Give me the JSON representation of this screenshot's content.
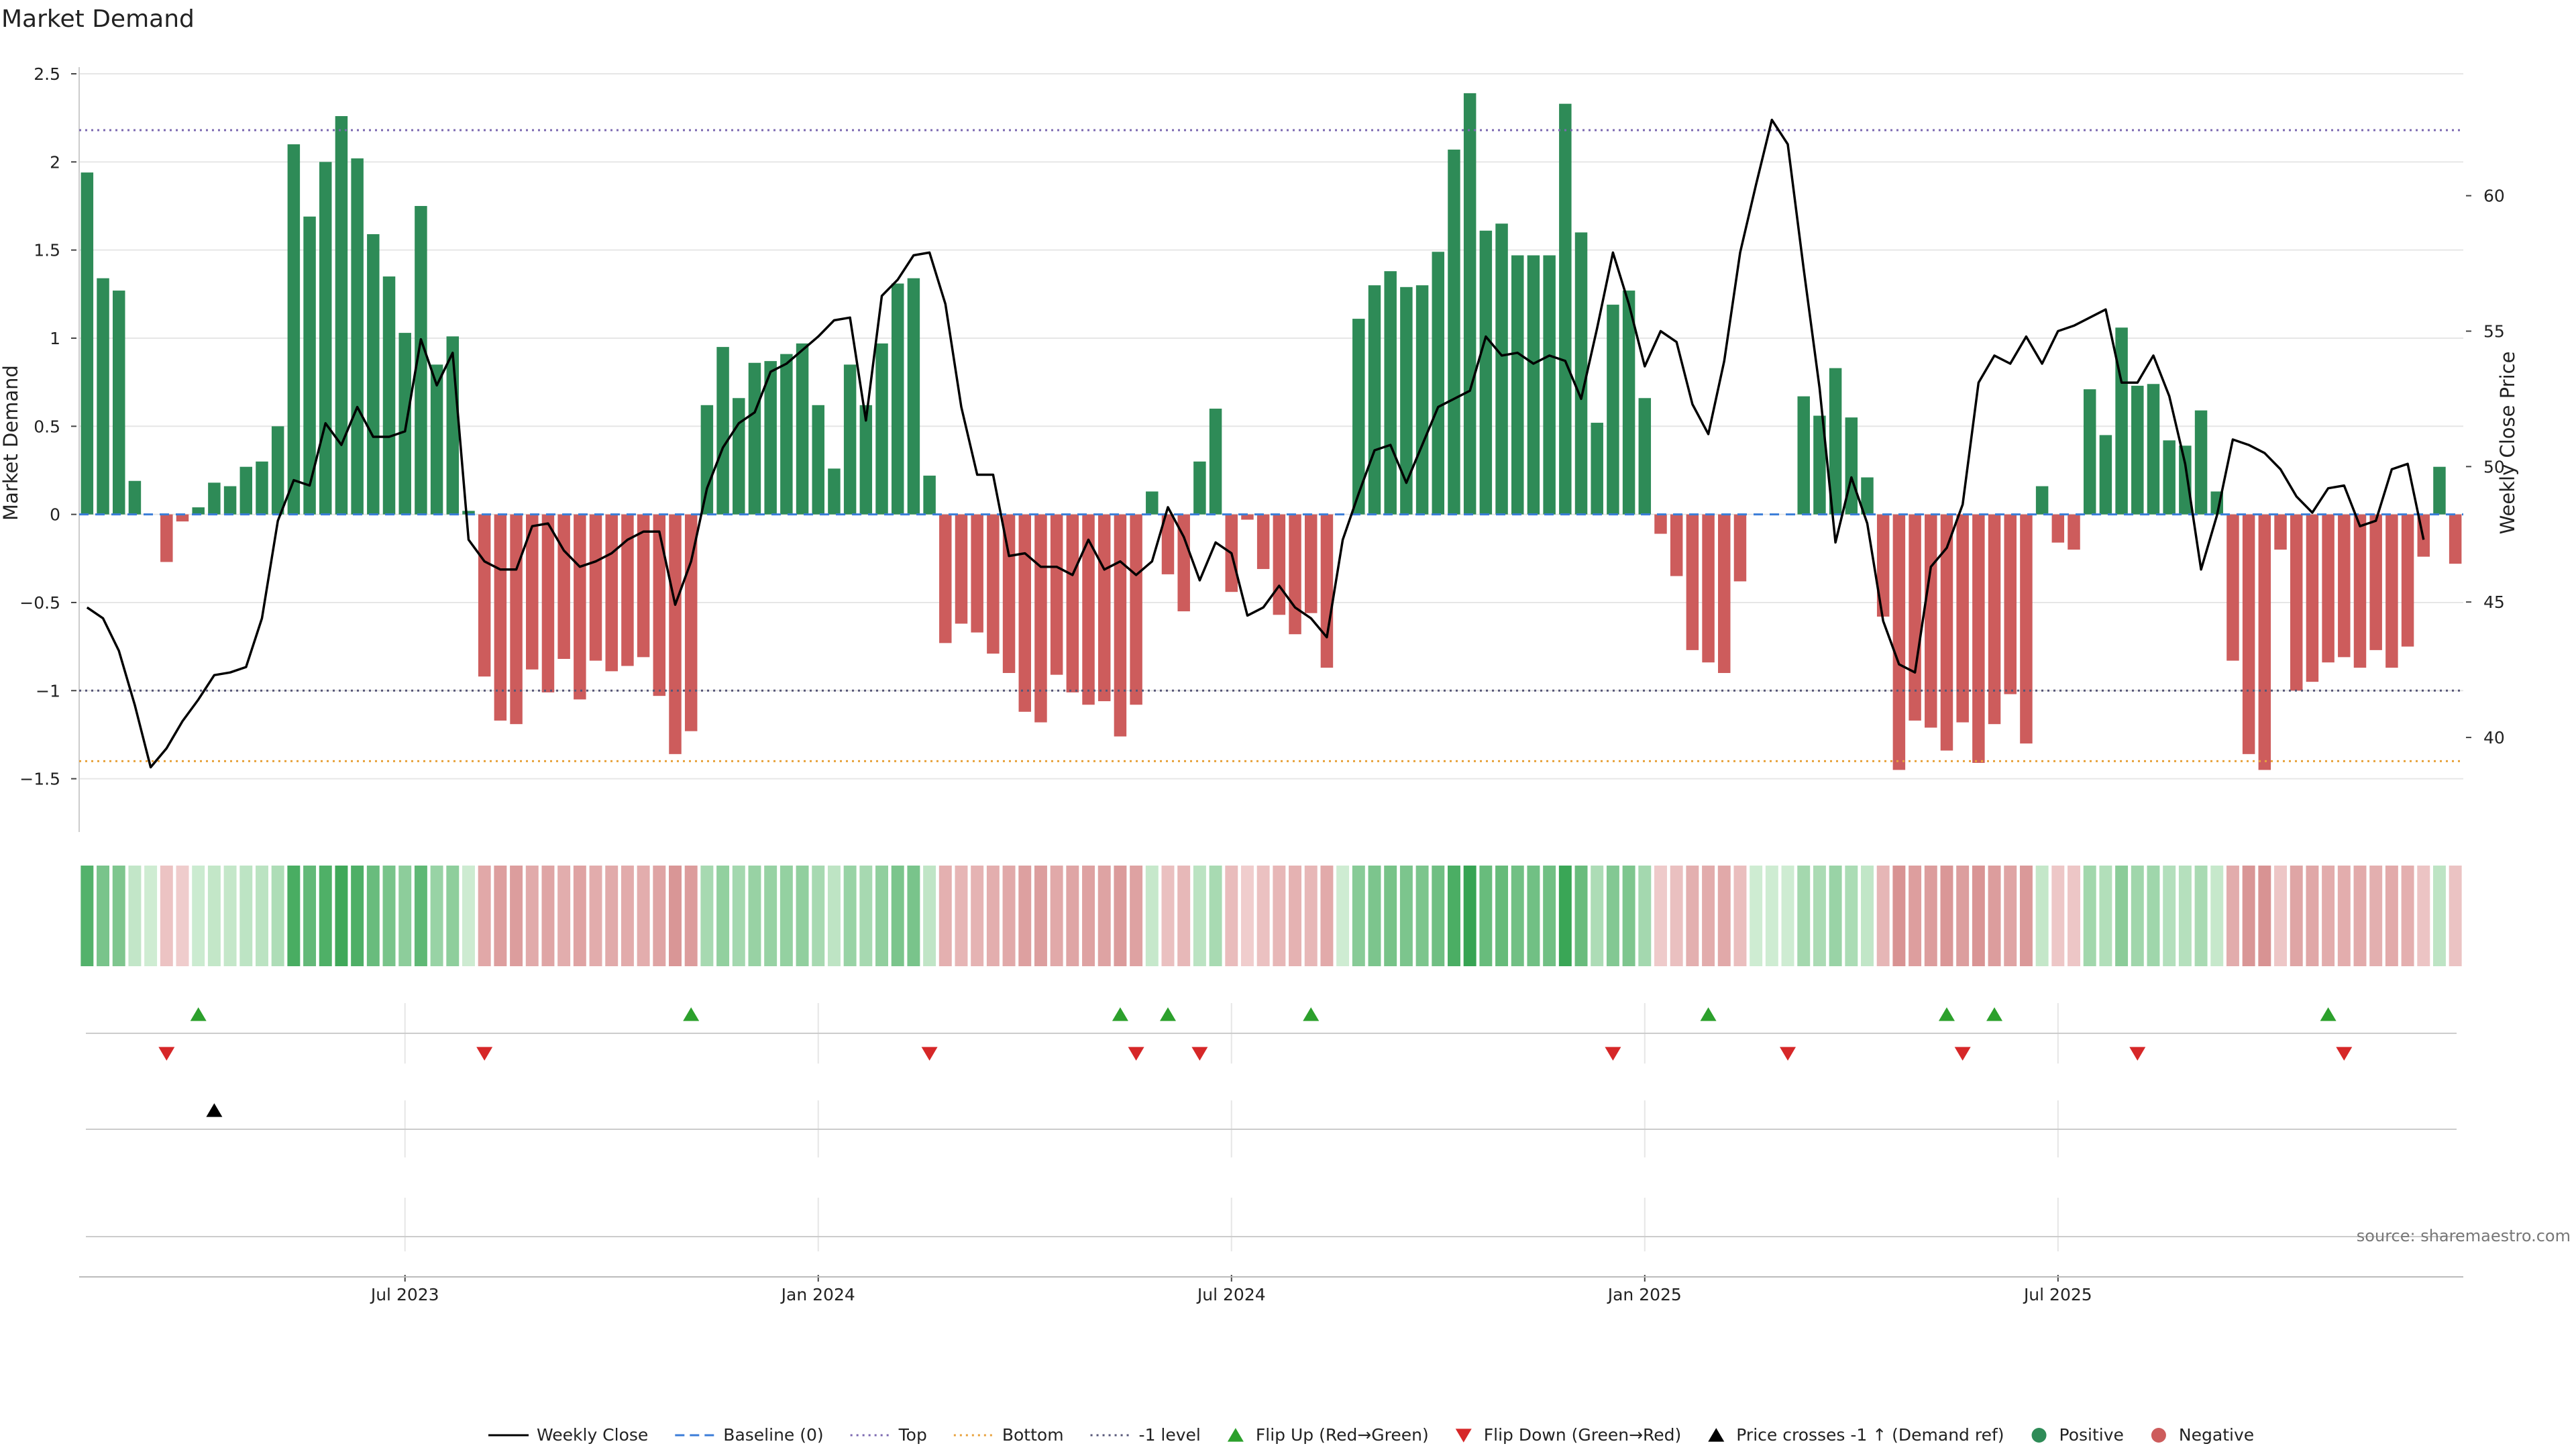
{
  "chart_data": {
    "type": "bar",
    "title": "Market Demand",
    "ylabel_left": "Market Demand",
    "ylabel_right": "Weekly Close Price",
    "ylim_left": [
      -1.65,
      2.5
    ],
    "ylim_right": [
      37.5,
      64.5
    ],
    "left_ticks": [
      "2.5",
      "2",
      "1.5",
      "1",
      "0.5",
      "0",
      "−0.5",
      "−1",
      "−1.5"
    ],
    "left_tick_values": [
      2.5,
      2,
      1.5,
      1,
      0.5,
      0,
      -0.5,
      -1,
      -1.5
    ],
    "right_ticks": [
      "60",
      "55",
      "50",
      "45",
      "40"
    ],
    "right_tick_values": [
      60,
      55,
      50,
      45,
      40
    ],
    "x_ticks": [
      {
        "label": "Jul 2023",
        "week": 20
      },
      {
        "label": "Jan 2024",
        "week": 46
      },
      {
        "label": "Jul 2024",
        "week": 72
      },
      {
        "label": "Jan 2025",
        "week": 98
      },
      {
        "label": "Jul 2025",
        "week": 124
      }
    ],
    "reference_lines": {
      "top": 2.18,
      "bottom": -1.4,
      "minus_one": -1.0,
      "baseline": 0
    },
    "colors": {
      "positive": "#2e8b57",
      "negative": "#cd5c5c",
      "price": "#000000",
      "top": "#7b68b0",
      "bottom": "#e8a23c",
      "minus_one": "#555577",
      "baseline": "#3b7dd8",
      "flip_up": "#2ca02c",
      "flip_down": "#d62728",
      "cross": "#000000"
    },
    "demand": [
      1.94,
      1.34,
      1.27,
      0.19,
      0,
      -0.27,
      -0.04,
      0.04,
      0.18,
      0.16,
      0.27,
      0.3,
      0.5,
      2.1,
      1.69,
      2.0,
      2.26,
      2.02,
      1.59,
      1.35,
      1.03,
      1.75,
      0.85,
      1.01,
      0.02,
      -0.92,
      -1.17,
      -1.19,
      -0.88,
      -1.01,
      -0.82,
      -1.05,
      -0.83,
      -0.89,
      -0.86,
      -0.81,
      -1.03,
      -1.36,
      -1.23,
      0.62,
      0.95,
      0.66,
      0.86,
      0.87,
      0.91,
      0.97,
      0.62,
      0.26,
      0.85,
      0.62,
      0.97,
      1.31,
      1.34,
      0.22,
      -0.73,
      -0.62,
      -0.67,
      -0.79,
      -0.9,
      -1.12,
      -1.18,
      -0.91,
      -1.01,
      -1.08,
      -1.06,
      -1.26,
      -1.08,
      0.13,
      -0.34,
      -0.55,
      0.3,
      0.6,
      -0.44,
      -0.03,
      -0.31,
      -0.57,
      -0.68,
      -0.56,
      -0.87,
      0,
      1.11,
      1.3,
      1.38,
      1.29,
      1.3,
      1.49,
      2.07,
      2.39,
      1.61,
      1.65,
      1.47,
      1.47,
      1.47,
      2.33,
      1.6,
      0.52,
      1.19,
      1.27,
      0.66,
      -0.11,
      -0.35,
      -0.77,
      -0.84,
      -0.9,
      -0.38,
      0,
      0,
      0,
      0.67,
      0.56,
      0.83,
      0.55,
      0.21,
      -0.58,
      -1.45,
      -1.17,
      -1.21,
      -1.34,
      -1.18,
      -1.41,
      -1.19,
      -1.02,
      -1.3,
      0.16,
      -0.16,
      -0.2,
      0.71,
      0.45,
      1.06,
      0.73,
      0.74,
      0.42,
      0.39,
      0.59,
      0.13,
      -0.83,
      -1.36,
      -1.45,
      -0.2,
      -1.0,
      -0.95,
      -0.84,
      -0.81,
      -0.87,
      -0.77,
      -0.87,
      -0.75,
      -0.24,
      0.27,
      -0.28
    ],
    "price": [
      44.8,
      44.4,
      43.2,
      41.2,
      38.9,
      39.6,
      40.6,
      41.4,
      42.3,
      42.4,
      42.6,
      44.4,
      48.0,
      49.5,
      49.3,
      51.6,
      50.8,
      52.2,
      51.1,
      51.1,
      51.3,
      54.7,
      53.0,
      54.2,
      47.3,
      46.5,
      46.2,
      46.2,
      47.8,
      47.9,
      46.9,
      46.3,
      46.5,
      46.8,
      47.3,
      47.6,
      47.6,
      44.9,
      46.5,
      49.2,
      50.7,
      51.6,
      52.0,
      53.5,
      53.8,
      54.3,
      54.8,
      55.4,
      55.5,
      51.7,
      56.3,
      56.9,
      57.8,
      57.9,
      56.0,
      52.2,
      49.7,
      49.7,
      46.7,
      46.8,
      46.3,
      46.3,
      46.0,
      47.3,
      46.2,
      46.5,
      46.0,
      46.5,
      48.5,
      47.4,
      45.8,
      47.2,
      46.8,
      44.5,
      44.8,
      45.6,
      44.8,
      44.4,
      43.7,
      47.3,
      49.0,
      50.6,
      50.8,
      49.4,
      50.8,
      52.2,
      52.5,
      52.8,
      54.8,
      54.1,
      54.2,
      53.8,
      54.1,
      53.9,
      52.5,
      55.1,
      57.9,
      56.0,
      53.7,
      55.0,
      54.6,
      52.3,
      51.2,
      53.9,
      57.9,
      60.4,
      62.8,
      61.9,
      57.3,
      52.9,
      47.2,
      49.6,
      47.9,
      44.3,
      42.7,
      42.4,
      46.3,
      47.0,
      48.6,
      53.1,
      54.1,
      53.8,
      54.8,
      53.8,
      55.0,
      55.2,
      55.5,
      55.8,
      53.1,
      53.1,
      54.1,
      52.6,
      50.1,
      46.2,
      48.2,
      51.0,
      50.8,
      50.5,
      49.9,
      48.9,
      48.3,
      49.2,
      49.3,
      47.8,
      48.0,
      49.9,
      50.1,
      47.3
    ],
    "flip_up_weeks": [
      7,
      38,
      65,
      68,
      77,
      102,
      117,
      120,
      141
    ],
    "flip_down_weeks": [
      5,
      25,
      53,
      66,
      70,
      96,
      107,
      118,
      129,
      142
    ],
    "cross_weeks": [
      8
    ],
    "source_note": "source: sharemaestro.com",
    "legend": [
      {
        "label": "Weekly Close",
        "kind": "line",
        "color_key": "price"
      },
      {
        "label": "Baseline (0)",
        "kind": "dash",
        "color_key": "baseline"
      },
      {
        "label": "Top",
        "kind": "dot",
        "color_key": "top"
      },
      {
        "label": "Bottom",
        "kind": "dot",
        "color_key": "bottom"
      },
      {
        "label": "-1 level",
        "kind": "dot",
        "color_key": "minus_one"
      },
      {
        "label": "Flip Up (Red→Green)",
        "kind": "tri-up",
        "color_key": "flip_up"
      },
      {
        "label": "Flip Down (Green→Red)",
        "kind": "tri-down",
        "color_key": "flip_down"
      },
      {
        "label": "Price crosses -1 ↑ (Demand ref)",
        "kind": "tri-up",
        "color_key": "cross"
      },
      {
        "label": "Positive",
        "kind": "circle",
        "color_key": "positive"
      },
      {
        "label": "Negative",
        "kind": "circle",
        "color_key": "negative"
      }
    ]
  }
}
